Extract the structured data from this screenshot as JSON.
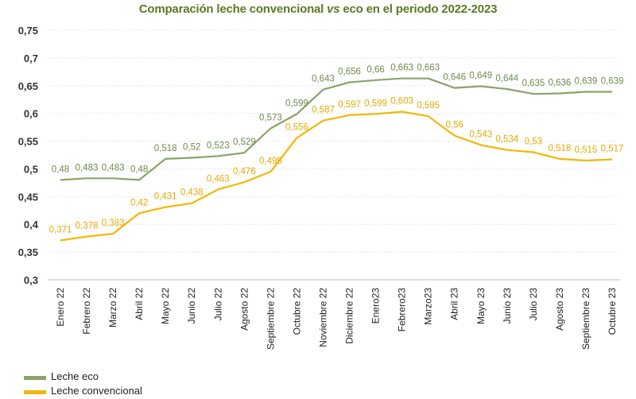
{
  "chart_data": {
    "type": "line",
    "title_parts": [
      "Comparación leche convencional ",
      "vs",
      " eco en el periodo 2022-2023"
    ],
    "categories": [
      "Enero 22",
      "Febrero 22",
      "Marzo 22",
      "Abril 22",
      "Mayo 22",
      "Junio 22",
      "Julio 22",
      "Agosto 22",
      "Septiembre 22",
      "Octubre 22",
      "Noviembre 22",
      "Diciembre 22",
      "Enero23",
      "Febrero23",
      "Marzo23",
      "Abril 23",
      "Mayo 23",
      "Junio 23",
      "Julio 23",
      "Agosto 23",
      "Septiembre 23",
      "Octubre 23"
    ],
    "series": [
      {
        "name": "Leche eco",
        "color": "#8aa36a",
        "values": [
          0.48,
          0.483,
          0.483,
          0.48,
          0.518,
          0.52,
          0.523,
          0.529,
          0.573,
          0.599,
          0.643,
          0.656,
          0.66,
          0.663,
          0.663,
          0.646,
          0.649,
          0.644,
          0.635,
          0.636,
          0.639,
          0.639
        ],
        "labels": [
          "0,48",
          "0,483",
          "0,483",
          "0,48",
          "0,518",
          "0,52",
          "0,523",
          "0,529",
          "0,573",
          "0,599",
          "0,643",
          "0,656",
          "0,66",
          "0,663",
          "0,663",
          "0,646",
          "0,649",
          "0,644",
          "0,635",
          "0,636",
          "0,639",
          "0,639"
        ],
        "label_color": "#6f8a4e"
      },
      {
        "name": "Leche convencional",
        "color": "#f2b705",
        "values": [
          0.371,
          0.378,
          0.383,
          0.42,
          0.431,
          0.438,
          0.463,
          0.476,
          0.495,
          0.556,
          0.587,
          0.597,
          0.599,
          0.603,
          0.595,
          0.56,
          0.543,
          0.534,
          0.53,
          0.518,
          0.515,
          0.517
        ],
        "labels": [
          "0,371",
          "0,378",
          "0,383",
          "0,42",
          "0,431",
          "0,438",
          "0,463",
          "0,476",
          "0,495",
          "0,556",
          "0,587",
          "0,597",
          "0,599",
          "0,603",
          "0,595",
          "0,56",
          "0,543",
          "0,534",
          "0,53",
          "0,518",
          "0,515",
          "0,517"
        ],
        "label_color": "#e8a800"
      }
    ],
    "yticks": [
      "0,3",
      "0,35",
      "0,4",
      "0,45",
      "0,5",
      "0,55",
      "0,6",
      "0,65",
      "0,7",
      "0,75"
    ],
    "ylim": [
      0.3,
      0.75
    ],
    "grid": true,
    "legend": "bottom-left"
  }
}
